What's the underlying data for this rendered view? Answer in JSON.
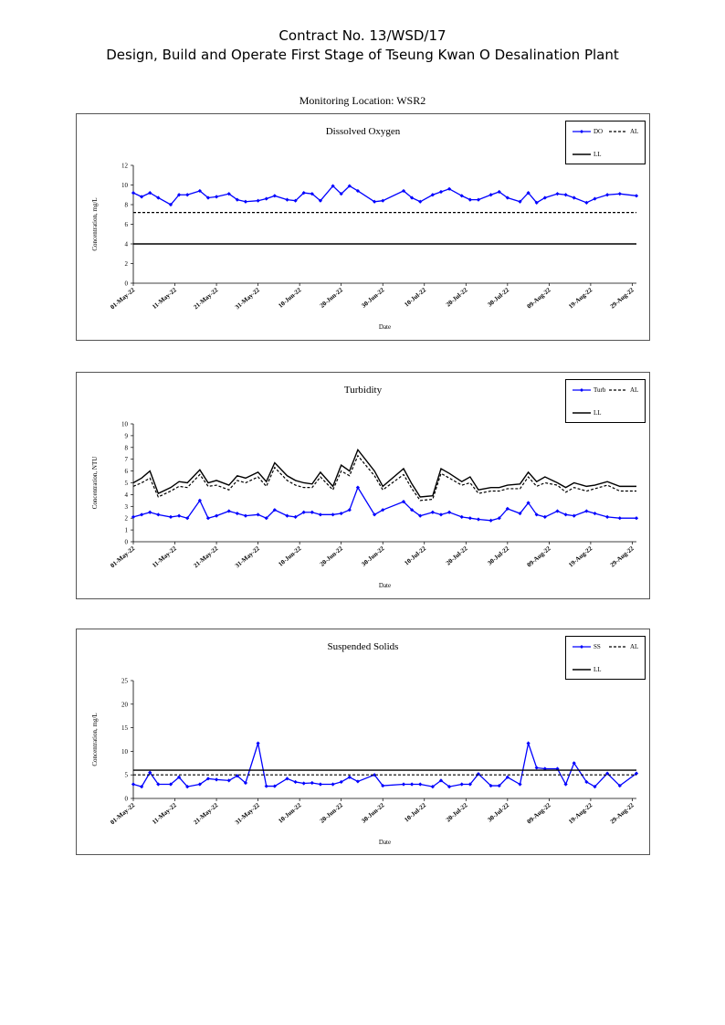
{
  "header": {
    "contract": "Contract No. 13/WSD/17",
    "project": "Design, Build and Operate First Stage of Tseung Kwan O Desalination Plant",
    "location": "Monitoring Location: WSR2"
  },
  "colors": {
    "series": "#0000ff",
    "al": "#000000",
    "ll": "#000000"
  },
  "chart_data": [
    {
      "type": "line",
      "title": "Dissolved Oxygen",
      "xlabel": "Date",
      "ylabel": "Concentration, mg/L",
      "ylim": [
        0,
        12
      ],
      "yticks": [
        "0",
        "2",
        "4",
        "6",
        "8",
        "10",
        "12"
      ],
      "grid": false,
      "legend_position": "top-right",
      "x_tick_labels": [
        "01-May-22",
        "11-May-22",
        "21-May-22",
        "31-May-22",
        "10-Jun-22",
        "20-Jun-22",
        "30-Jun-22",
        "10-Jul-22",
        "20-Jul-22",
        "30-Jul-22",
        "09-Aug-22",
        "19-Aug-22",
        "29-Aug-22"
      ],
      "series": [
        {
          "name": "DO",
          "style": "line-markers",
          "x": [
            "01-May-22",
            "03-May-22",
            "05-May-22",
            "07-May-22",
            "10-May-22",
            "12-May-22",
            "14-May-22",
            "17-May-22",
            "19-May-22",
            "21-May-22",
            "24-May-22",
            "26-May-22",
            "28-May-22",
            "31-May-22",
            "02-Jun-22",
            "04-Jun-22",
            "07-Jun-22",
            "09-Jun-22",
            "11-Jun-22",
            "13-Jun-22",
            "15-Jun-22",
            "18-Jun-22",
            "20-Jun-22",
            "22-Jun-22",
            "24-Jun-22",
            "28-Jun-22",
            "30-Jun-22",
            "05-Jul-22",
            "07-Jul-22",
            "09-Jul-22",
            "12-Jul-22",
            "14-Jul-22",
            "16-Jul-22",
            "19-Jul-22",
            "21-Jul-22",
            "23-Jul-22",
            "26-Jul-22",
            "28-Jul-22",
            "30-Jul-22",
            "02-Aug-22",
            "04-Aug-22",
            "06-Aug-22",
            "08-Aug-22",
            "11-Aug-22",
            "13-Aug-22",
            "15-Aug-22",
            "18-Aug-22",
            "20-Aug-22",
            "23-Aug-22",
            "26-Aug-22",
            "30-Aug-22"
          ],
          "values": [
            9.2,
            8.8,
            9.2,
            8.7,
            8.0,
            9.0,
            9.0,
            9.4,
            8.7,
            8.8,
            9.1,
            8.5,
            8.3,
            8.4,
            8.6,
            8.9,
            8.5,
            8.4,
            9.2,
            9.1,
            8.4,
            9.9,
            9.1,
            9.9,
            9.4,
            8.3,
            8.4,
            9.4,
            8.7,
            8.3,
            9.0,
            9.3,
            9.6,
            8.9,
            8.5,
            8.5,
            9.0,
            9.3,
            8.7,
            8.3,
            9.2,
            8.2,
            8.7,
            9.1,
            9.0,
            8.7,
            8.2,
            8.6,
            9.0,
            9.1,
            8.9
          ]
        },
        {
          "name": "AL",
          "style": "dashed",
          "x": [
            "01-May-22",
            "30-Aug-22"
          ],
          "values": [
            7.2,
            7.2
          ]
        },
        {
          "name": "LL",
          "style": "solid",
          "x": [
            "01-May-22",
            "30-Aug-22"
          ],
          "values": [
            4.0,
            4.0
          ]
        }
      ]
    },
    {
      "type": "line",
      "title": "Turbidity",
      "xlabel": "Date",
      "ylabel": "Concentration, NTU",
      "ylim": [
        0,
        10
      ],
      "yticks": [
        "0",
        "1",
        "2",
        "3",
        "4",
        "5",
        "6",
        "7",
        "8",
        "9",
        "10"
      ],
      "grid": false,
      "legend_position": "top-right",
      "x_tick_labels": [
        "01-May-22",
        "11-May-22",
        "21-May-22",
        "31-May-22",
        "10-Jun-22",
        "20-Jun-22",
        "30-Jun-22",
        "10-Jul-22",
        "20-Jul-22",
        "30-Jul-22",
        "09-Aug-22",
        "19-Aug-22",
        "29-Aug-22"
      ],
      "series": [
        {
          "name": "Turb",
          "style": "line-markers",
          "x": [
            "01-May-22",
            "03-May-22",
            "05-May-22",
            "07-May-22",
            "10-May-22",
            "12-May-22",
            "14-May-22",
            "17-May-22",
            "19-May-22",
            "21-May-22",
            "24-May-22",
            "26-May-22",
            "28-May-22",
            "31-May-22",
            "02-Jun-22",
            "04-Jun-22",
            "07-Jun-22",
            "09-Jun-22",
            "11-Jun-22",
            "13-Jun-22",
            "15-Jun-22",
            "18-Jun-22",
            "20-Jun-22",
            "22-Jun-22",
            "24-Jun-22",
            "28-Jun-22",
            "30-Jun-22",
            "05-Jul-22",
            "07-Jul-22",
            "09-Jul-22",
            "12-Jul-22",
            "14-Jul-22",
            "16-Jul-22",
            "19-Jul-22",
            "21-Jul-22",
            "23-Jul-22",
            "26-Jul-22",
            "28-Jul-22",
            "30-Jul-22",
            "02-Aug-22",
            "04-Aug-22",
            "06-Aug-22",
            "08-Aug-22",
            "11-Aug-22",
            "13-Aug-22",
            "15-Aug-22",
            "18-Aug-22",
            "20-Aug-22",
            "23-Aug-22",
            "26-Aug-22",
            "30-Aug-22"
          ],
          "values": [
            2.1,
            2.3,
            2.5,
            2.3,
            2.1,
            2.2,
            2.0,
            3.5,
            2.0,
            2.2,
            2.6,
            2.4,
            2.2,
            2.3,
            2.0,
            2.7,
            2.2,
            2.1,
            2.5,
            2.5,
            2.3,
            2.3,
            2.4,
            2.7,
            4.6,
            2.3,
            2.7,
            3.4,
            2.7,
            2.2,
            2.5,
            2.3,
            2.5,
            2.1,
            2.0,
            1.9,
            1.8,
            2.0,
            2.8,
            2.4,
            3.3,
            2.3,
            2.1,
            2.6,
            2.3,
            2.2,
            2.6,
            2.4,
            2.1,
            2.0,
            2.0
          ]
        },
        {
          "name": "AL",
          "style": "dashed",
          "x": [
            "01-May-22",
            "03-May-22",
            "05-May-22",
            "07-May-22",
            "10-May-22",
            "12-May-22",
            "14-May-22",
            "17-May-22",
            "19-May-22",
            "21-May-22",
            "24-May-22",
            "26-May-22",
            "28-May-22",
            "31-May-22",
            "02-Jun-22",
            "04-Jun-22",
            "07-Jun-22",
            "09-Jun-22",
            "11-Jun-22",
            "13-Jun-22",
            "15-Jun-22",
            "18-Jun-22",
            "20-Jun-22",
            "22-Jun-22",
            "24-Jun-22",
            "28-Jun-22",
            "30-Jun-22",
            "05-Jul-22",
            "07-Jul-22",
            "09-Jul-22",
            "12-Jul-22",
            "14-Jul-22",
            "16-Jul-22",
            "19-Jul-22",
            "21-Jul-22",
            "23-Jul-22",
            "26-Jul-22",
            "28-Jul-22",
            "30-Jul-22",
            "02-Aug-22",
            "04-Aug-22",
            "06-Aug-22",
            "08-Aug-22",
            "11-Aug-22",
            "13-Aug-22",
            "15-Aug-22",
            "18-Aug-22",
            "20-Aug-22",
            "23-Aug-22",
            "26-Aug-22",
            "30-Aug-22"
          ],
          "values": [
            4.7,
            5.0,
            5.4,
            3.8,
            4.3,
            4.7,
            4.6,
            5.7,
            4.7,
            4.8,
            4.4,
            5.2,
            5.0,
            5.5,
            4.7,
            6.3,
            5.2,
            4.8,
            4.6,
            4.6,
            5.5,
            4.4,
            6.0,
            5.6,
            7.3,
            5.6,
            4.4,
            5.7,
            4.5,
            3.5,
            3.6,
            5.8,
            5.4,
            4.8,
            5.0,
            4.1,
            4.3,
            4.3,
            4.5,
            4.5,
            5.5,
            4.7,
            5.0,
            4.8,
            4.2,
            4.6,
            4.3,
            4.5,
            4.8,
            4.3,
            4.3
          ]
        },
        {
          "name": "LL",
          "style": "solid",
          "x": [
            "01-May-22",
            "03-May-22",
            "05-May-22",
            "07-May-22",
            "10-May-22",
            "12-May-22",
            "14-May-22",
            "17-May-22",
            "19-May-22",
            "21-May-22",
            "24-May-22",
            "26-May-22",
            "28-May-22",
            "31-May-22",
            "02-Jun-22",
            "04-Jun-22",
            "07-Jun-22",
            "09-Jun-22",
            "11-Jun-22",
            "13-Jun-22",
            "15-Jun-22",
            "18-Jun-22",
            "20-Jun-22",
            "22-Jun-22",
            "24-Jun-22",
            "28-Jun-22",
            "30-Jun-22",
            "05-Jul-22",
            "07-Jul-22",
            "09-Jul-22",
            "12-Jul-22",
            "14-Jul-22",
            "16-Jul-22",
            "19-Jul-22",
            "21-Jul-22",
            "23-Jul-22",
            "26-Jul-22",
            "28-Jul-22",
            "30-Jul-22",
            "02-Aug-22",
            "04-Aug-22",
            "06-Aug-22",
            "08-Aug-22",
            "11-Aug-22",
            "13-Aug-22",
            "15-Aug-22",
            "18-Aug-22",
            "20-Aug-22",
            "23-Aug-22",
            "26-Aug-22",
            "30-Aug-22"
          ],
          "values": [
            5.0,
            5.4,
            6.0,
            4.1,
            4.6,
            5.1,
            5.0,
            6.1,
            5.0,
            5.2,
            4.8,
            5.6,
            5.4,
            5.9,
            5.1,
            6.7,
            5.6,
            5.2,
            5.0,
            4.9,
            5.9,
            4.7,
            6.5,
            6.0,
            7.8,
            6.0,
            4.7,
            6.2,
            4.9,
            3.8,
            3.9,
            6.2,
            5.8,
            5.1,
            5.5,
            4.4,
            4.6,
            4.6,
            4.8,
            4.9,
            5.9,
            5.1,
            5.5,
            5.0,
            4.6,
            5.0,
            4.7,
            4.8,
            5.1,
            4.7,
            4.7
          ]
        }
      ]
    },
    {
      "type": "line",
      "title": "Suspended Solids",
      "xlabel": "Date",
      "ylabel": "Concentration, mg/L",
      "ylim": [
        0,
        25
      ],
      "yticks": [
        "0",
        "5",
        "10",
        "15",
        "20",
        "25"
      ],
      "grid": false,
      "legend_position": "top-right",
      "x_tick_labels": [
        "01-May-22",
        "11-May-22",
        "21-May-22",
        "31-May-22",
        "10-Jun-22",
        "20-Jun-22",
        "30-Jun-22",
        "10-Jul-22",
        "20-Jul-22",
        "30-Jul-22",
        "09-Aug-22",
        "19-Aug-22",
        "29-Aug-22"
      ],
      "series": [
        {
          "name": "SS",
          "style": "line-markers",
          "x": [
            "01-May-22",
            "03-May-22",
            "05-May-22",
            "07-May-22",
            "10-May-22",
            "12-May-22",
            "14-May-22",
            "17-May-22",
            "19-May-22",
            "21-May-22",
            "24-May-22",
            "26-May-22",
            "28-May-22",
            "31-May-22",
            "02-Jun-22",
            "04-Jun-22",
            "07-Jun-22",
            "09-Jun-22",
            "11-Jun-22",
            "13-Jun-22",
            "15-Jun-22",
            "18-Jun-22",
            "20-Jun-22",
            "22-Jun-22",
            "24-Jun-22",
            "28-Jun-22",
            "30-Jun-22",
            "05-Jul-22",
            "07-Jul-22",
            "09-Jul-22",
            "12-Jul-22",
            "14-Jul-22",
            "16-Jul-22",
            "19-Jul-22",
            "21-Jul-22",
            "23-Jul-22",
            "26-Jul-22",
            "28-Jul-22",
            "30-Jul-22",
            "02-Aug-22",
            "04-Aug-22",
            "06-Aug-22",
            "08-Aug-22",
            "11-Aug-22",
            "13-Aug-22",
            "15-Aug-22",
            "18-Aug-22",
            "20-Aug-22",
            "23-Aug-22",
            "26-Aug-22",
            "30-Aug-22"
          ],
          "values": [
            3.0,
            2.5,
            5.5,
            3.0,
            3.0,
            4.5,
            2.5,
            3.0,
            4.2,
            4.0,
            3.8,
            4.8,
            3.3,
            11.7,
            2.6,
            2.6,
            4.2,
            3.5,
            3.2,
            3.3,
            3.0,
            3.0,
            3.5,
            4.5,
            3.6,
            5.0,
            2.7,
            3.0,
            3.0,
            3.0,
            2.5,
            3.8,
            2.5,
            3.0,
            3.0,
            5.2,
            2.7,
            2.7,
            4.5,
            3.0,
            11.7,
            6.5,
            6.3,
            6.3,
            3.0,
            7.5,
            3.5,
            2.5,
            5.3,
            2.7,
            5.3
          ]
        },
        {
          "name": "AL",
          "style": "dashed",
          "x": [
            "01-May-22",
            "30-Aug-22"
          ],
          "values": [
            5.0,
            5.0
          ]
        },
        {
          "name": "LL",
          "style": "solid",
          "x": [
            "01-May-22",
            "30-Aug-22"
          ],
          "values": [
            6.0,
            6.0
          ]
        }
      ]
    }
  ]
}
